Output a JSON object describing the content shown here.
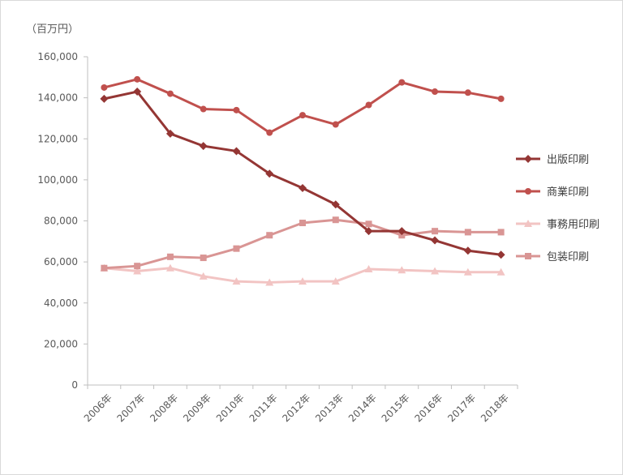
{
  "chart_data": {
    "type": "line",
    "unit_label": "（百万円）",
    "categories": [
      "2006年",
      "2007年",
      "2008年",
      "2009年",
      "2010年",
      "2011年",
      "2012年",
      "2013年",
      "2014年",
      "2015年",
      "2016年",
      "2017年",
      "2018年"
    ],
    "ylim": [
      0,
      160000
    ],
    "yticks": [
      0,
      20000,
      40000,
      60000,
      80000,
      100000,
      120000,
      140000,
      160000
    ],
    "ytick_labels": [
      "0",
      "20,000",
      "40,000",
      "60,000",
      "80,000",
      "100,000",
      "120,000",
      "140,000",
      "160,000"
    ],
    "grid": false,
    "legend_position": "right",
    "series": [
      {
        "name": "出版印刷",
        "color": "#943634",
        "marker": "diamond",
        "values": [
          139500,
          143000,
          122500,
          116500,
          114000,
          103000,
          96000,
          88000,
          75000,
          75000,
          70500,
          65500,
          63500
        ]
      },
      {
        "name": "商業印刷",
        "color": "#c0504d",
        "marker": "circle",
        "values": [
          145000,
          149000,
          142000,
          134500,
          134000,
          123000,
          131500,
          127000,
          136500,
          147500,
          143000,
          142500,
          139500
        ]
      },
      {
        "name": "事務用印刷",
        "color": "#f2c4c3",
        "marker": "triangle",
        "values": [
          57000,
          55500,
          57000,
          53000,
          50500,
          50000,
          50500,
          50500,
          56500,
          56000,
          55500,
          55000,
          55000
        ]
      },
      {
        "name": "包装印刷",
        "color": "#d99594",
        "marker": "square",
        "values": [
          57000,
          58000,
          62500,
          62000,
          66500,
          73000,
          79000,
          80500,
          78500,
          73000,
          75000,
          74500,
          74500
        ]
      }
    ]
  }
}
